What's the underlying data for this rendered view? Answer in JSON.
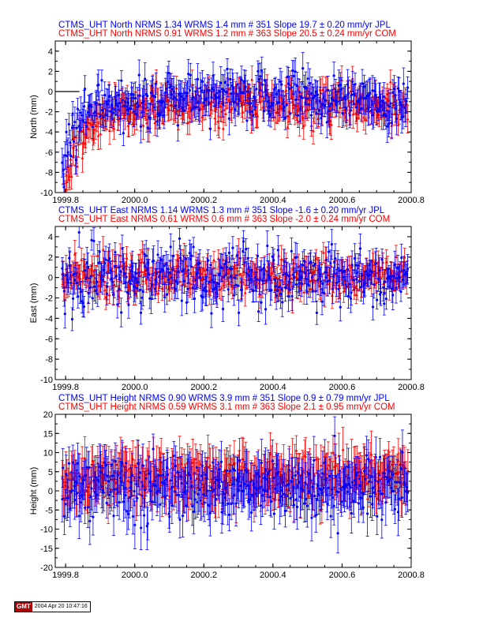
{
  "colors": {
    "jpl": "#0000ff",
    "com": "#ff0000",
    "axis": "#000000"
  },
  "chart_data": [
    {
      "type": "scatter",
      "ylabel": "North (mm)",
      "xlim": [
        1999.77,
        2000.8
      ],
      "ylim": [
        -10,
        5
      ],
      "yticks": [
        -10,
        -8,
        -6,
        -4,
        -2,
        0,
        2,
        4
      ],
      "xticks": [
        "1999.8",
        "2000.0",
        "2000.2",
        "2000.4",
        "2000.6",
        "2000.8"
      ],
      "title_lines": [
        {
          "text": "CTMS_UHT North NRMS 1.34 WRMS  1.4 mm # 351 Slope   19.7 ±  0.20 mm/yr JPL",
          "color": "#0000ff"
        },
        {
          "text": "CTMS_UHT North NRMS 0.91 WRMS  1.2 mm # 363 Slope   20.5 ±  0.24 mm/yr COM",
          "color": "#ff0000"
        }
      ],
      "zero_line": {
        "x_start": 1999.77,
        "x_end": 1999.84,
        "y": 0
      },
      "series": [
        {
          "name": "JPL",
          "color": "#0000ff",
          "count": 351,
          "start_offset": -5.2,
          "tau_years": 0.04,
          "level": -0.4,
          "scatter": 1.25,
          "error": 1.3
        },
        {
          "name": "COM",
          "color": "#ff0000",
          "count": 363,
          "start_offset": -8.3,
          "tau_years": 0.045,
          "level": -1.2,
          "scatter": 1.0,
          "error": 1.2
        }
      ]
    },
    {
      "type": "scatter",
      "ylabel": "East (mm)",
      "xlim": [
        1999.77,
        2000.8
      ],
      "ylim": [
        -10,
        5
      ],
      "yticks": [
        -10,
        -8,
        -6,
        -4,
        -2,
        0,
        2,
        4
      ],
      "xticks": [
        "1999.8",
        "2000.0",
        "2000.2",
        "2000.4",
        "2000.6",
        "2000.8"
      ],
      "title_lines": [
        {
          "text": "CTMS_UHT East NRMS 1.14 WRMS  1.3 mm # 351 Slope   -1.6 ±  0.20 mm/yr JPL",
          "color": "#0000ff"
        },
        {
          "text": "CTMS_UHT East NRMS 0.61 WRMS  0.6 mm # 363 Slope   -2.0 ±  0.24 mm/yr COM",
          "color": "#ff0000"
        }
      ],
      "zero_line": null,
      "series": [
        {
          "name": "JPL",
          "color": "#0000ff",
          "count": 351,
          "start_offset": 0,
          "tau_years": 0.05,
          "level": 0.0,
          "scatter": 1.35,
          "error": 1.2
        },
        {
          "name": "COM",
          "color": "#ff0000",
          "count": 363,
          "start_offset": 0,
          "tau_years": 0.05,
          "level": 0.2,
          "scatter": 0.9,
          "error": 1.1
        }
      ]
    },
    {
      "type": "scatter",
      "ylabel": "Height (mm)",
      "xlim": [
        1999.77,
        2000.8
      ],
      "ylim": [
        -20,
        20
      ],
      "yticks": [
        -20,
        -15,
        -10,
        -5,
        0,
        5,
        10,
        15,
        20
      ],
      "xticks": [
        "1999.8",
        "2000.0",
        "2000.2",
        "2000.4",
        "2000.6",
        "2000.8"
      ],
      "title_lines": [
        {
          "text": "CTMS_UHT Height NRMS 0.90 WRMS  3.9 mm # 351 Slope    0.9 ±  0.79 mm/yr JPL",
          "color": "#0000ff"
        },
        {
          "text": "CTMS_UHT Height NRMS 0.59 WRMS  3.1 mm # 363 Slope    2.1 ±  0.95 mm/yr COM",
          "color": "#ff0000"
        }
      ],
      "zero_line": null,
      "series": [
        {
          "name": "JPL",
          "color": "#0000ff",
          "count": 351,
          "start_offset": 0,
          "tau_years": 0.05,
          "level": 0.5,
          "scatter": 4.0,
          "error": 5.0
        },
        {
          "name": "COM",
          "color": "#ff0000",
          "count": 363,
          "start_offset": 0,
          "tau_years": 0.05,
          "level": 3.5,
          "scatter": 3.2,
          "error": 5.0
        }
      ]
    }
  ],
  "footer": {
    "logo": "GMT",
    "timestamp": "2004 Apr 20 10:47:16"
  }
}
